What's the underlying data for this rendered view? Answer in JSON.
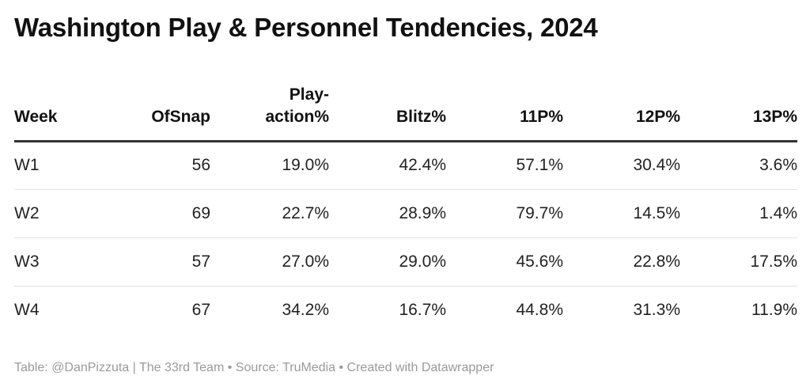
{
  "title": "Washington Play & Personnel Tendencies, 2024",
  "footer": "Table: @DanPizzuta | The 33rd Team • Source: TruMedia • Created with Datawrapper",
  "chart_data": {
    "type": "table",
    "title": "Washington Play & Personnel Tendencies, 2024",
    "columns": [
      "Week",
      "OfSnap",
      "Play-action%",
      "Blitz%",
      "11P%",
      "12P%",
      "13P%"
    ],
    "rows": [
      [
        "W1",
        "56",
        "19.0%",
        "42.4%",
        "57.1%",
        "30.4%",
        "3.6%"
      ],
      [
        "W2",
        "69",
        "22.7%",
        "28.9%",
        "79.7%",
        "14.5%",
        "1.4%"
      ],
      [
        "W3",
        "57",
        "27.0%",
        "29.0%",
        "45.6%",
        "22.8%",
        "17.5%"
      ],
      [
        "W4",
        "67",
        "34.2%",
        "16.7%",
        "44.8%",
        "31.3%",
        "11.9%"
      ]
    ]
  }
}
